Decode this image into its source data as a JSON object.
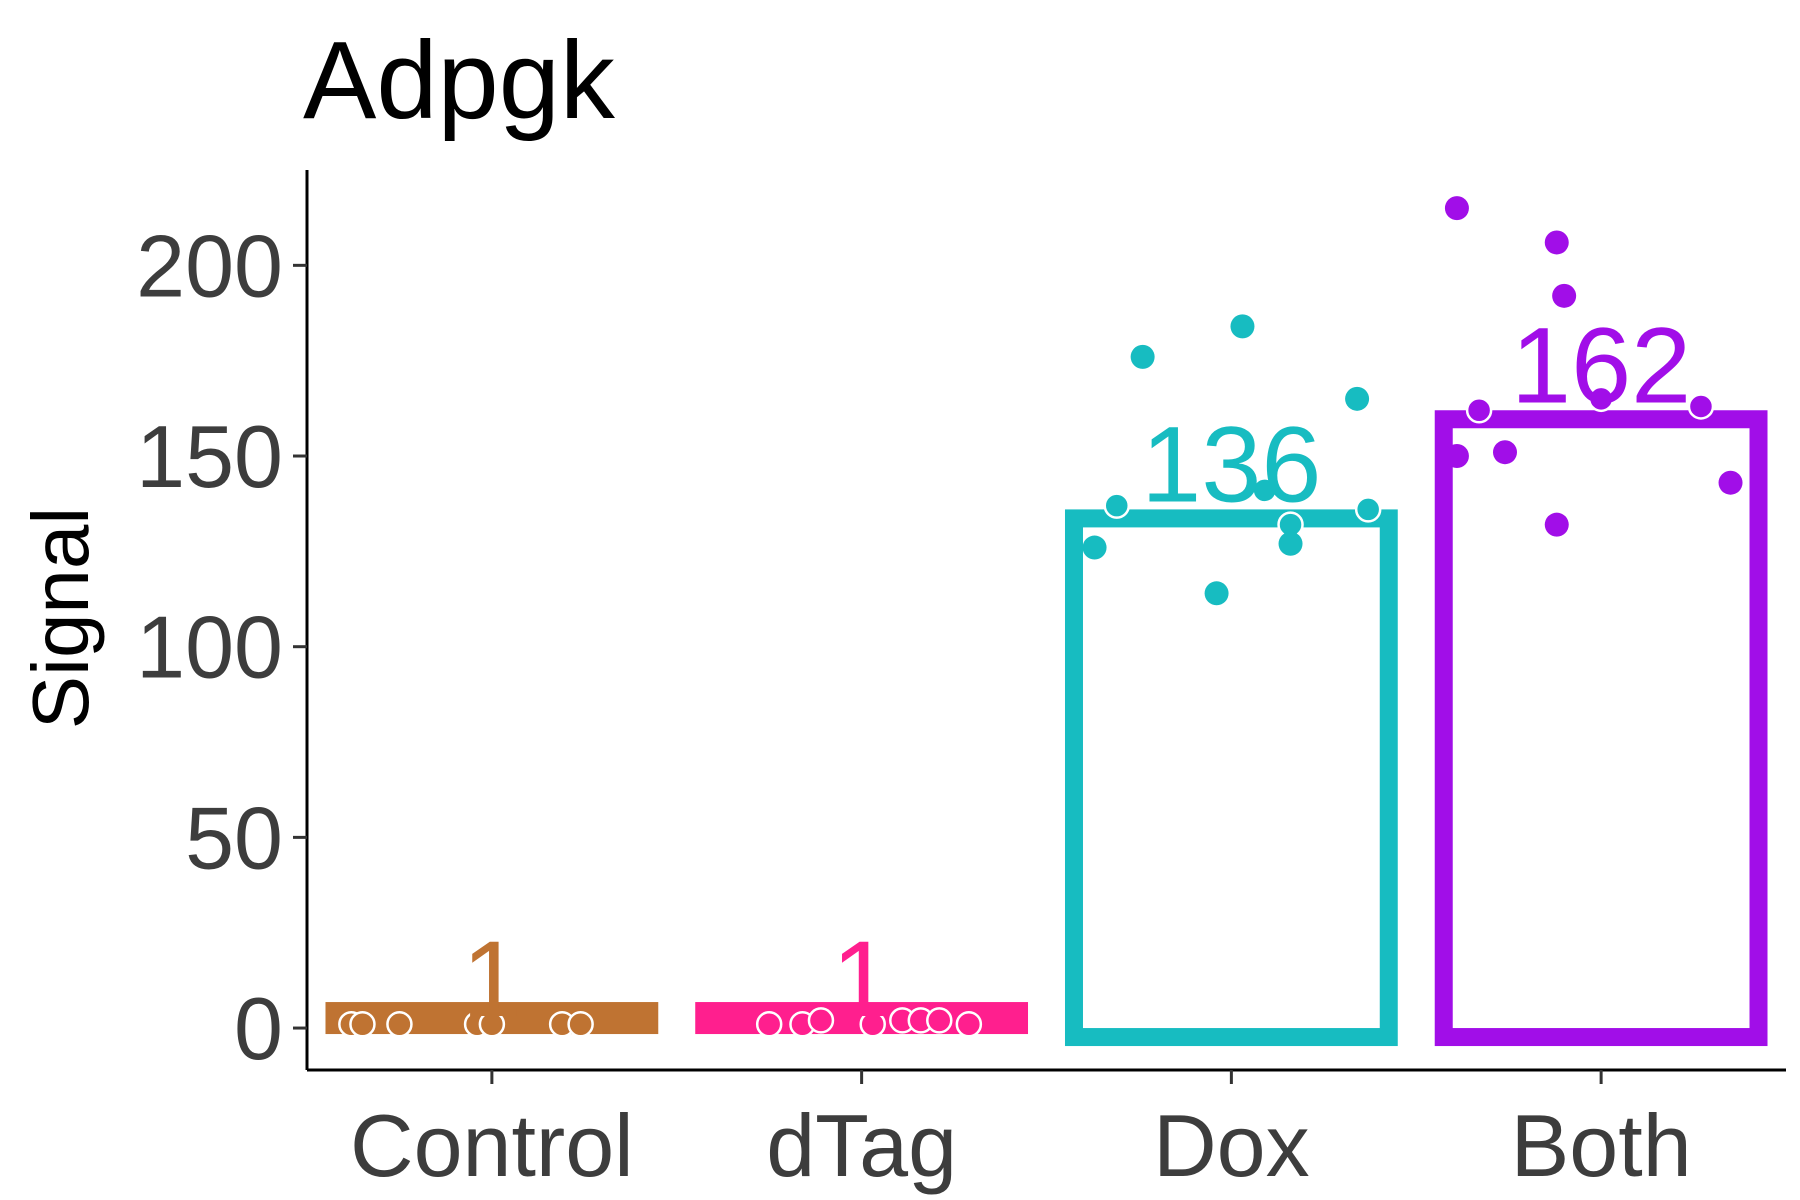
{
  "chart_data": {
    "type": "bar",
    "title": "Adpgk",
    "xlabel": "",
    "ylabel": "Signal",
    "ylim": [
      -11,
      225
    ],
    "yticks": [
      0,
      50,
      100,
      150,
      200
    ],
    "categories": [
      "Control",
      "dTag",
      "Dox",
      "Both"
    ],
    "colors": [
      "#bf7332",
      "#ff1f8e",
      "#17bcc1",
      "#a10ee8"
    ],
    "bar_style": [
      "filled",
      "filled",
      "outline",
      "outline"
    ],
    "values": [
      1,
      1,
      136,
      162
    ],
    "value_labels": [
      "1",
      "1",
      "136",
      "162"
    ],
    "points": [
      [
        {
          "x": -0.38,
          "y": 1,
          "outlined": true
        },
        {
          "x": -0.35,
          "y": 1,
          "outlined": true
        },
        {
          "x": -0.25,
          "y": 1,
          "outlined": true
        },
        {
          "x": -0.04,
          "y": 1,
          "outlined": true
        },
        {
          "x": 0.0,
          "y": 1,
          "outlined": true
        },
        {
          "x": 0.19,
          "y": 1,
          "outlined": true
        },
        {
          "x": 0.24,
          "y": 1,
          "outlined": true
        }
      ],
      [
        {
          "x": -0.25,
          "y": 1,
          "outlined": true
        },
        {
          "x": -0.16,
          "y": 1,
          "outlined": true
        },
        {
          "x": -0.11,
          "y": 2,
          "outlined": true
        },
        {
          "x": 0.03,
          "y": 1,
          "outlined": true
        },
        {
          "x": 0.11,
          "y": 2,
          "outlined": true
        },
        {
          "x": 0.16,
          "y": 2,
          "outlined": true
        },
        {
          "x": 0.21,
          "y": 2,
          "outlined": true
        },
        {
          "x": 0.29,
          "y": 1,
          "outlined": true
        }
      ],
      [
        {
          "x": -0.37,
          "y": 126,
          "outlined": false
        },
        {
          "x": -0.31,
          "y": 137,
          "outlined": true
        },
        {
          "x": -0.24,
          "y": 176,
          "outlined": false
        },
        {
          "x": -0.04,
          "y": 114,
          "outlined": false
        },
        {
          "x": 0.03,
          "y": 184,
          "outlined": false
        },
        {
          "x": 0.09,
          "y": 141,
          "outlined": true
        },
        {
          "x": 0.16,
          "y": 132,
          "outlined": true
        },
        {
          "x": 0.16,
          "y": 127,
          "outlined": false
        },
        {
          "x": 0.34,
          "y": 165,
          "outlined": false
        },
        {
          "x": 0.37,
          "y": 136,
          "outlined": true
        }
      ],
      [
        {
          "x": -0.39,
          "y": 215,
          "outlined": false
        },
        {
          "x": -0.39,
          "y": 150,
          "outlined": false
        },
        {
          "x": -0.33,
          "y": 162,
          "outlined": true
        },
        {
          "x": -0.26,
          "y": 151,
          "outlined": false
        },
        {
          "x": -0.12,
          "y": 206,
          "outlined": false
        },
        {
          "x": -0.12,
          "y": 132,
          "outlined": false
        },
        {
          "x": -0.1,
          "y": 192,
          "outlined": false
        },
        {
          "x": 0.0,
          "y": 165,
          "outlined": true
        },
        {
          "x": 0.27,
          "y": 163,
          "outlined": true
        },
        {
          "x": 0.35,
          "y": 143,
          "outlined": false
        }
      ]
    ],
    "grid": false,
    "legend": "none"
  }
}
